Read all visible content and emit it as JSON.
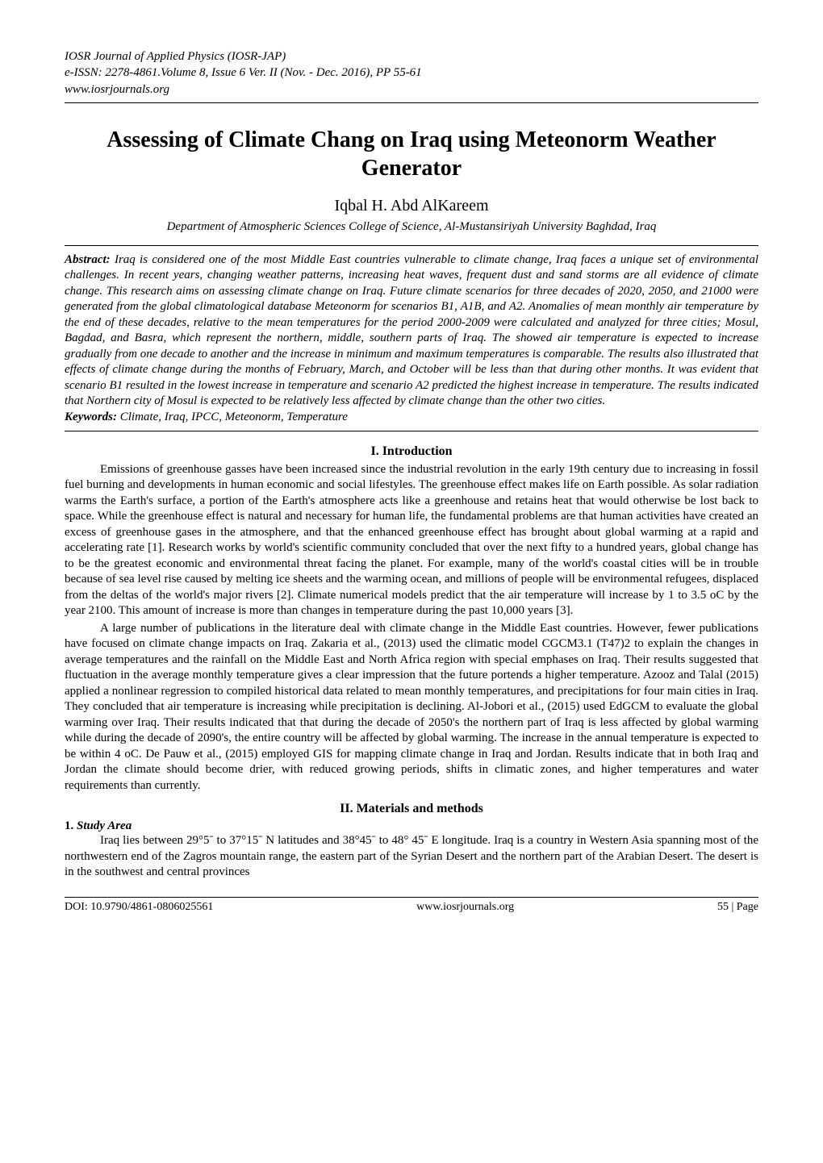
{
  "header": {
    "journal": "IOSR Journal of Applied Physics (IOSR-JAP)",
    "issn": "e-ISSN: 2278-4861.Volume 8, Issue 6 Ver. II (Nov. - Dec. 2016), PP 55-61",
    "website": "www.iosrjournals.org"
  },
  "title": "Assessing of Climate Chang on Iraq using Meteonorm Weather Generator",
  "author": "Iqbal H. Abd AlKareem",
  "affiliation": "Department of Atmospheric Sciences College of Science, Al-Mustansiriyah University Baghdad, Iraq",
  "abstract": {
    "label": "Abstract:",
    "text": " Iraq is considered one of the most Middle East countries vulnerable to climate change, Iraq faces a unique set of environmental challenges. In recent years, changing weather patterns, increasing heat waves, frequent dust and sand storms are all evidence of climate change. This research aims on assessing climate change on Iraq. Future climate scenarios for three decades of 2020, 2050, and 21000 were generated from the global climatological database Meteonorm for scenarios B1, A1B, and A2. Anomalies of mean monthly air temperature by the end of these decades, relative to the mean temperatures for the period 2000-2009 were calculated and analyzed for three cities; Mosul, Bagdad, and Basra, which represent the northern, middle, southern parts of Iraq. The showed air temperature is expected to increase gradually from one decade to another and the increase in minimum and maximum temperatures is comparable. The results also illustrated that effects of climate change during the months of February, March, and October will be less than that during other months.  It was evident that scenario B1 resulted in the lowest increase in temperature and scenario A2 predicted the highest increase in temperature. The results indicated that Northern city of Mosul is expected to be relatively less affected by climate change than the other two cities."
  },
  "keywords": {
    "label": "Keywords:",
    "text": " Climate, Iraq, IPCC, Meteonorm, Temperature"
  },
  "sections": {
    "intro": {
      "heading": "I.     Introduction",
      "para1": "Emissions of greenhouse gasses have been increased since the industrial revolution in the early 19th century due to increasing in fossil fuel burning and developments in human economic and social lifestyles. The greenhouse effect makes life on Earth possible. As solar radiation warms the Earth's surface, a portion of the Earth's atmosphere acts like a greenhouse and retains heat that would otherwise be lost back to space. While the greenhouse effect is natural and necessary for human life, the fundamental problems are that human activities have created an excess of greenhouse gases in the atmosphere, and that the enhanced greenhouse effect has brought about global warming at a rapid and accelerating rate [1]. Research works by world's scientific community concluded that over the next fifty to a hundred years, global change has to be the greatest economic and environmental threat facing the planet. For example, many of the world's coastal cities will be in trouble because of sea level rise caused by melting ice sheets and the warming ocean, and millions of people will be environmental refugees, displaced from the deltas of the world's major rivers [2]. Climate numerical models predict that the air temperature will increase by 1 to 3.5 oC by the year 2100. This amount of increase is more than changes in temperature during the past 10,000 years [3].",
      "para2": "A large number of publications in the literature deal with climate change in the Middle East countries. However, fewer publications have focused on climate change impacts on Iraq. Zakaria et al., (2013) used the climatic model CGCM3.1 (T47)2  to explain the changes in average temperatures and the rainfall on the Middle East and North Africa region with special emphases on Iraq. Their results suggested that fluctuation in the average monthly temperature gives a clear impression that the future portends a higher temperature.  Azooz and Talal (2015) applied a nonlinear regression to compiled historical data related to mean monthly temperatures, and precipitations for four main cities in Iraq. They concluded that air temperature is increasing while precipitation is declining. Al-Jobori et al., (2015) used EdGCM to evaluate the global warming over Iraq. Their results indicated that that during the decade  of 2050's the northern part of Iraq is less affected by global warming while during the decade of 2090's, the entire country will be affected by global warming. The increase in the annual temperature is expected to be within 4 oC. De Pauw et al., (2015) employed GIS for mapping climate change in Iraq and Jordan. Results indicate that in both Iraq and Jordan the climate should become drier, with reduced growing periods, shifts in climatic zones, and higher temperatures and water requirements than currently."
    },
    "materials": {
      "heading": "II.     Materials and methods",
      "sub1_num": "1.",
      "sub1_label": " Study Area",
      "para1": "Iraq lies between 29°5ˉ to 37°15ˉ N latitudes and 38°45ˉ to 48° 45ˉ E longitude. Iraq is a country in Western Asia spanning most of the northwestern end of the Zagros mountain range, the eastern part of the Syrian Desert and the northern part of the Arabian Desert. The desert is in the southwest and central provinces"
    }
  },
  "footer": {
    "doi": "DOI: 10.9790/4861-0806025561",
    "site": "www.iosrjournals.org",
    "page": "55 | Page"
  },
  "colors": {
    "background": "#ffffff",
    "text": "#000000",
    "rule": "#000000"
  },
  "typography": {
    "body_family": "Times New Roman",
    "title_fontsize_pt": 21,
    "author_fontsize_pt": 15,
    "body_fontsize_pt": 11,
    "header_fontsize_pt": 11,
    "footer_fontsize_pt": 10
  }
}
